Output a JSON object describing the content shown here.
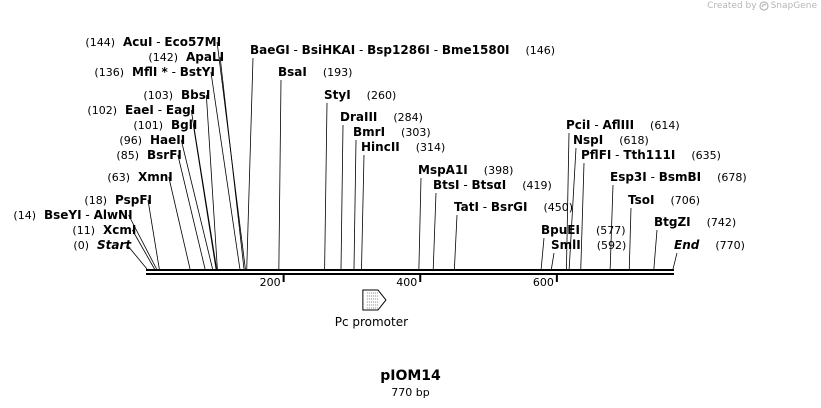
{
  "credit": {
    "prefix": "Created by",
    "brand": "SnapGene"
  },
  "plasmid": {
    "name": "pIOM14",
    "length_label": "770 bp",
    "length": 770
  },
  "colors": {
    "line": "#000000",
    "credit": "#b6b6b6"
  },
  "ticks": [
    {
      "pos": 200,
      "label": "200"
    },
    {
      "pos": 400,
      "label": "400"
    },
    {
      "pos": 600,
      "label": "600"
    }
  ],
  "feature": {
    "name": "Pc promoter",
    "start": 316,
    "end": 341,
    "direction": "forward"
  },
  "sites": [
    {
      "id": "acui",
      "pos": 144,
      "num_text": "(144)",
      "names": [
        "AcuI",
        "Eco57MI"
      ],
      "num_side": "left"
    },
    {
      "id": "apali",
      "pos": 142,
      "num_text": "(142)",
      "names": [
        "ApaLI"
      ],
      "num_side": "left"
    },
    {
      "id": "mfli",
      "pos": 136,
      "num_text": "(136)",
      "names": [
        "MflI *",
        "BstYI"
      ],
      "num_side": "left"
    },
    {
      "id": "bbsi",
      "pos": 103,
      "num_text": "(103)",
      "names": [
        "BbsI"
      ],
      "num_side": "left"
    },
    {
      "id": "eaei",
      "pos": 102,
      "num_text": "(102)",
      "names": [
        "EaeI",
        "EagI"
      ],
      "num_side": "left"
    },
    {
      "id": "bgli",
      "pos": 101,
      "num_text": "(101)",
      "names": [
        "BglI"
      ],
      "num_side": "left"
    },
    {
      "id": "haeii",
      "pos": 96,
      "num_text": "(96)",
      "names": [
        "HaeII"
      ],
      "num_side": "left"
    },
    {
      "id": "bsrfi",
      "pos": 85,
      "num_text": "(85)",
      "names": [
        "BsrFI"
      ],
      "num_side": "left"
    },
    {
      "id": "xmni",
      "pos": 63,
      "num_text": "(63)",
      "names": [
        "XmnI"
      ],
      "num_side": "left"
    },
    {
      "id": "pspfi",
      "pos": 18,
      "num_text": "(18)",
      "names": [
        "PspFI"
      ],
      "num_side": "left"
    },
    {
      "id": "bseyi",
      "pos": 14,
      "num_text": "(14)",
      "names": [
        "BseYI",
        "AlwNI"
      ],
      "num_side": "left"
    },
    {
      "id": "xcmi",
      "pos": 11,
      "num_text": "(11)",
      "names": [
        "XcmI"
      ],
      "num_side": "left"
    },
    {
      "id": "start",
      "pos": 0,
      "num_text": "(0)",
      "names": [
        "Start"
      ],
      "num_side": "left",
      "italic": true
    },
    {
      "id": "baegi",
      "pos": 146,
      "num_text": "(146)",
      "names": [
        "BaeGI",
        "BsiHKAI",
        "Bsp1286I",
        "Bme1580I"
      ],
      "num_side": "right"
    },
    {
      "id": "bsai",
      "pos": 193,
      "num_text": "(193)",
      "names": [
        "BsaI"
      ],
      "num_side": "right"
    },
    {
      "id": "styi",
      "pos": 260,
      "num_text": "(260)",
      "names": [
        "StyI"
      ],
      "num_side": "right"
    },
    {
      "id": "draiii",
      "pos": 284,
      "num_text": "(284)",
      "names": [
        "DraIII"
      ],
      "num_side": "right"
    },
    {
      "id": "bmri",
      "pos": 303,
      "num_text": "(303)",
      "names": [
        "BmrI"
      ],
      "num_side": "right"
    },
    {
      "id": "hincii",
      "pos": 314,
      "num_text": "(314)",
      "names": [
        "HincII"
      ],
      "num_side": "right"
    },
    {
      "id": "mspa1i",
      "pos": 398,
      "num_text": "(398)",
      "names": [
        "MspA1I"
      ],
      "num_side": "right"
    },
    {
      "id": "btsi",
      "pos": 419,
      "num_text": "(419)",
      "names": [
        "BtsI",
        "BtsαI"
      ],
      "num_side": "right"
    },
    {
      "id": "tati",
      "pos": 450,
      "num_text": "(450)",
      "names": [
        "TatI",
        "BsrGI"
      ],
      "num_side": "right"
    },
    {
      "id": "bpuei",
      "pos": 577,
      "num_text": "(577)",
      "names": [
        "BpuEI"
      ],
      "num_side": "right"
    },
    {
      "id": "smli",
      "pos": 592,
      "num_text": "(592)",
      "names": [
        "SmlI"
      ],
      "num_side": "right"
    },
    {
      "id": "pcii",
      "pos": 614,
      "num_text": "(614)",
      "names": [
        "PciI",
        "AflIII"
      ],
      "num_side": "right"
    },
    {
      "id": "nspi",
      "pos": 618,
      "num_text": "(618)",
      "names": [
        "NspI"
      ],
      "num_side": "right"
    },
    {
      "id": "pflfi",
      "pos": 635,
      "num_text": "(635)",
      "names": [
        "PflFI",
        "Tth111I"
      ],
      "num_side": "right"
    },
    {
      "id": "esp3i",
      "pos": 678,
      "num_text": "(678)",
      "names": [
        "Esp3I",
        "BsmBI"
      ],
      "num_side": "right"
    },
    {
      "id": "tsoi",
      "pos": 706,
      "num_text": "(706)",
      "names": [
        "TsoI"
      ],
      "num_side": "right"
    },
    {
      "id": "btgzi",
      "pos": 742,
      "num_text": "(742)",
      "names": [
        "BtgZI"
      ],
      "num_side": "right"
    },
    {
      "id": "end",
      "pos": 770,
      "num_text": "(770)",
      "names": [
        "End"
      ],
      "num_side": "right",
      "italic": true
    }
  ]
}
